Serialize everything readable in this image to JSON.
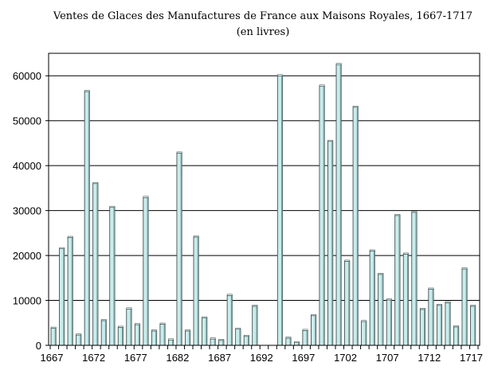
{
  "chart_data": {
    "type": "bar",
    "title": "Ventes de Glaces des Manufactures de France aux Maisons Royales, 1667-1717",
    "subtitle": "(en livres)",
    "xlabel": "",
    "ylabel": "",
    "ylim": [
      0,
      65000
    ],
    "yticks": [
      0,
      10000,
      20000,
      30000,
      40000,
      50000,
      60000
    ],
    "xticks": [
      "1667",
      "1672",
      "1677",
      "1682",
      "1687",
      "1692",
      "1697",
      "1702",
      "1707",
      "1712",
      "1717"
    ],
    "grid": true,
    "legend": "none",
    "categories": [
      "1667",
      "1668",
      "1669",
      "1670",
      "1671",
      "1672",
      "1673",
      "1674",
      "1675",
      "1676",
      "1677",
      "1678",
      "1679",
      "1680",
      "1681",
      "1682",
      "1683",
      "1684",
      "1685",
      "1686",
      "1687",
      "1688",
      "1689",
      "1690",
      "1691",
      "1692",
      "1693",
      "1694",
      "1695",
      "1696",
      "1697",
      "1698",
      "1699",
      "1700",
      "1701",
      "1702",
      "1703",
      "1704",
      "1705",
      "1706",
      "1707",
      "1708",
      "1709",
      "1710",
      "1711",
      "1712",
      "1713",
      "1714",
      "1715",
      "1716",
      "1717"
    ],
    "values": [
      3800,
      21500,
      24000,
      2300,
      56500,
      36000,
      5500,
      30700,
      4000,
      8100,
      4600,
      32900,
      3200,
      4700,
      1200,
      42800,
      3200,
      24100,
      6100,
      1400,
      1100,
      11100,
      3600,
      2000,
      8700,
      0,
      0,
      60000,
      1600,
      600,
      3300,
      6600,
      57700,
      45400,
      62500,
      18700,
      53000,
      5300,
      21000,
      15800,
      10100,
      28900,
      20300,
      29600,
      8000,
      12500,
      8900,
      9500,
      4100,
      17000,
      8700
    ]
  },
  "colors": {
    "bar_fill": "#c8ecec",
    "bar_side": "#7a9a9a",
    "bar_top": "#e8f8f8",
    "grid": "#000000"
  }
}
